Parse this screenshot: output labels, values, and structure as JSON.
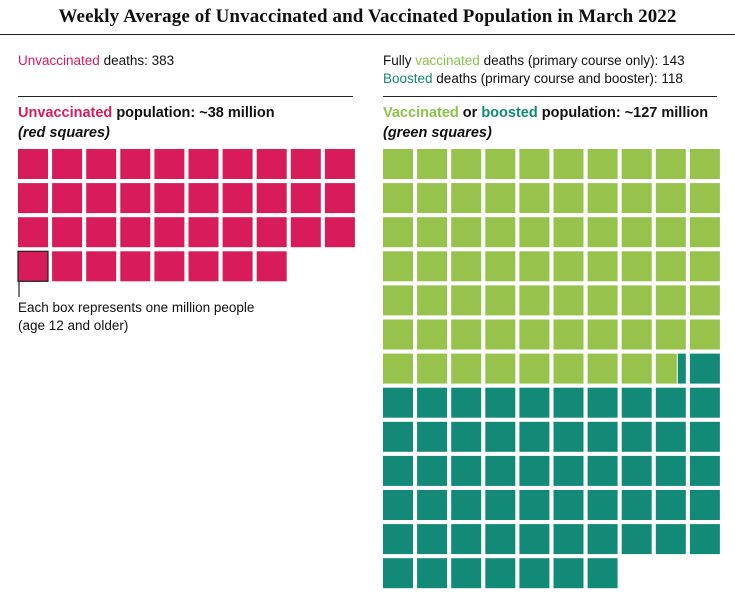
{
  "title": "Weekly Average of Unvaccinated and Vaccinated Population in March 2022",
  "colors": {
    "unvaccinated": "#d81b5b",
    "vaccinated": "#97c24c",
    "boosted": "#138a78"
  },
  "left": {
    "deaths_label": "Unvaccinated",
    "deaths_rest": " deaths: 383",
    "pop_label": "Unvaccinated",
    "pop_rest": " population: ~38 million",
    "pop_sub": "(red squares)",
    "legend_line1": "Each box represents one million people",
    "legend_line2": "(age 12 and older)"
  },
  "right": {
    "vax_pre": "Fully ",
    "vax_label": "vaccinated",
    "vax_rest": " deaths (primary course only): 143",
    "boost_label": "Boosted",
    "boost_rest": " deaths (primary course and booster): 118",
    "pop_label1": "Vaccinated",
    "pop_mid": " or ",
    "pop_label2": "boosted",
    "pop_rest": " population: ~127 million",
    "pop_sub": "(green squares)"
  },
  "chart_data": {
    "type": "waffle",
    "unit": "one million people",
    "series": [
      {
        "name": "Unvaccinated",
        "value": 38
      },
      {
        "name": "Vaccinated",
        "value": 68.7
      },
      {
        "name": "Boosted",
        "value": 58.3
      }
    ]
  }
}
